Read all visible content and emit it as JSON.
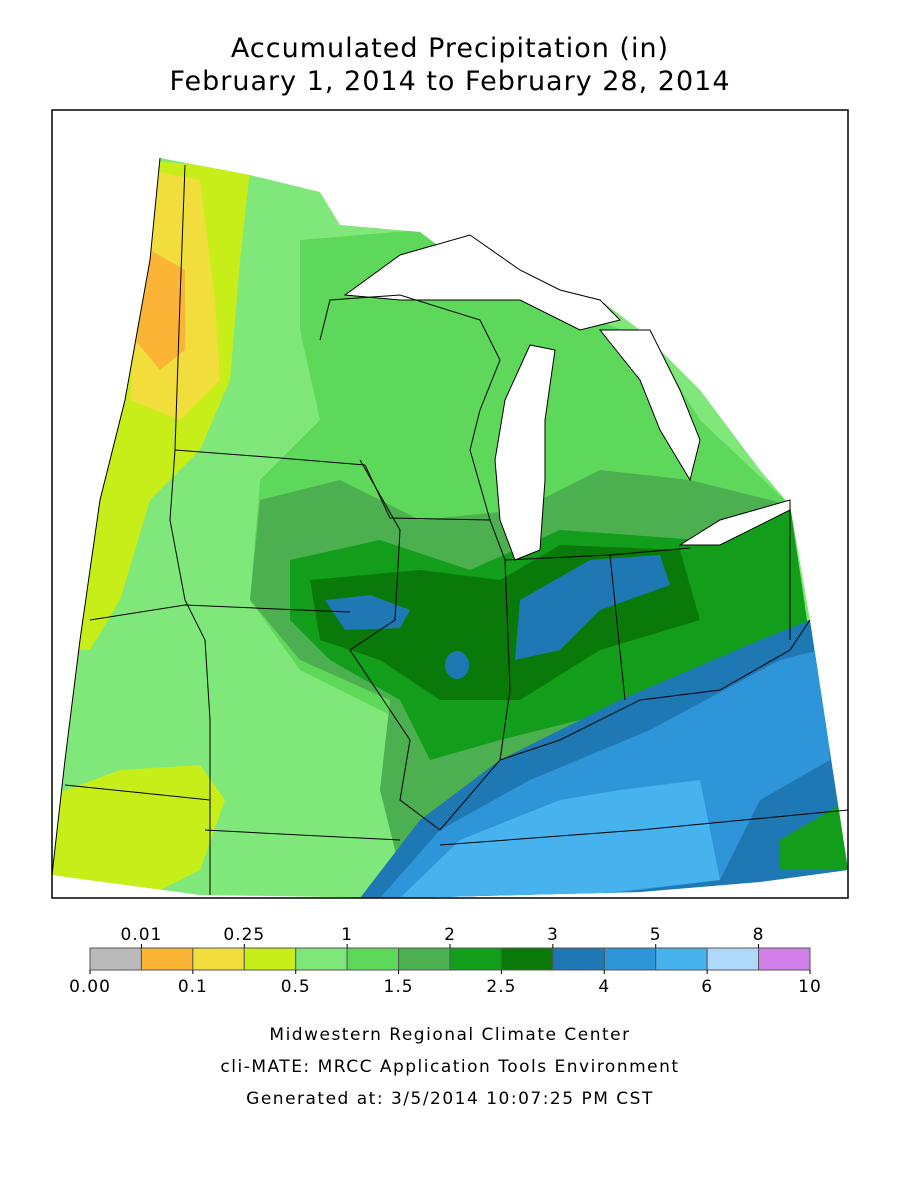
{
  "title": "Accumulated Precipitation (in)",
  "subtitle": "February 1, 2014 to February 28, 2014",
  "legend": {
    "colors": [
      "#bbbbbb",
      "#fbb436",
      "#f1de3c",
      "#c8ee1a",
      "#80e87a",
      "#5ed85a",
      "#4caf50",
      "#129e1a",
      "#097a0a",
      "#1e78b4",
      "#2e96d8",
      "#46b2ee",
      "#b0d8f8",
      "#d080e8"
    ],
    "breaks": [
      {
        "value": 0,
        "label": "0.00"
      },
      0.01,
      0.1,
      0.25,
      0.5,
      1,
      1.5,
      2,
      2.5,
      3,
      4,
      5,
      6,
      8,
      10
    ]
  },
  "footer": [
    "Midwestern Regional Climate Center",
    "cli-MATE: MRCC Application Tools Environment",
    "Generated at: 3/5/2014 10:07:25 PM CST"
  ]
}
